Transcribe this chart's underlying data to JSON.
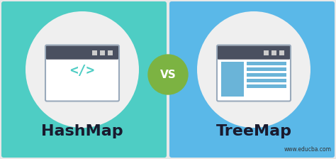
{
  "bg_color": "#e8e8e8",
  "left_box_color": "#4ecdc4",
  "right_box_color": "#5ab8e8",
  "vs_circle_color": "#7cb342",
  "ellipse_color": "#efefef",
  "window_dark": "#4a5060",
  "window_border": "#9aaabb",
  "window_light_blue": "#6ab4d8",
  "window_lines": "#a0cce0",
  "left_label": "HashMap",
  "right_label": "TreeMap",
  "vs_text": "VS",
  "watermark": "www.educba.com",
  "label_color": "#1a1a2e",
  "watermark_color": "#333333"
}
